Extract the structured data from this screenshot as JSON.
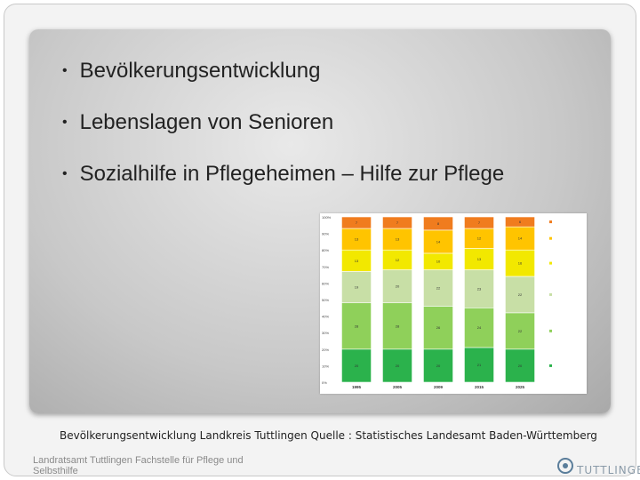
{
  "bullets": [
    "Bevölkerungsentwicklung",
    "Lebenslagen von Senioren",
    "Sozialhilfe in Pflegeheimen – Hilfe zur Pflege"
  ],
  "caption": "Bevölkerungsentwicklung Landkreis Tuttlingen Quelle : Statistisches Landesamt Baden-Württemberg",
  "footer": "Landratsamt Tuttlingen Fachstelle für Pflege und Selbsthilfe",
  "logo": {
    "word": "TUTTLINGEN",
    "icon": "district-logo-icon"
  },
  "chart_data": {
    "type": "bar",
    "stacked": true,
    "categories": [
      "1995",
      "2005",
      "2009",
      "2015",
      "2025"
    ],
    "y_ticks": [
      "0%",
      "10%",
      "20%",
      "30%",
      "40%",
      "50%",
      "60%",
      "70%",
      "80%",
      "90%",
      "100%"
    ],
    "ylim": [
      0,
      100
    ],
    "series": [
      {
        "color": "#2bb24c",
        "values": [
          20,
          20,
          20,
          21,
          20
        ]
      },
      {
        "color": "#8fd05a",
        "values": [
          28,
          28,
          26,
          24,
          22
        ]
      },
      {
        "color": "#c8dfa6",
        "values": [
          19,
          20,
          22,
          23,
          22
        ]
      },
      {
        "color": "#f2e800",
        "values": [
          13,
          12,
          10,
          13,
          16
        ]
      },
      {
        "color": "#ffc400",
        "values": [
          13,
          13,
          14,
          12,
          14
        ]
      },
      {
        "color": "#f07c1e",
        "values": [
          7,
          7,
          8,
          7,
          6
        ]
      }
    ],
    "legend": [
      "",
      "",
      "",
      "",
      "",
      ""
    ],
    "legend_placement": "right"
  },
  "colors": {
    "panel": "#c8c8c8",
    "text": "#222222",
    "footer": "#8a8a8a"
  }
}
